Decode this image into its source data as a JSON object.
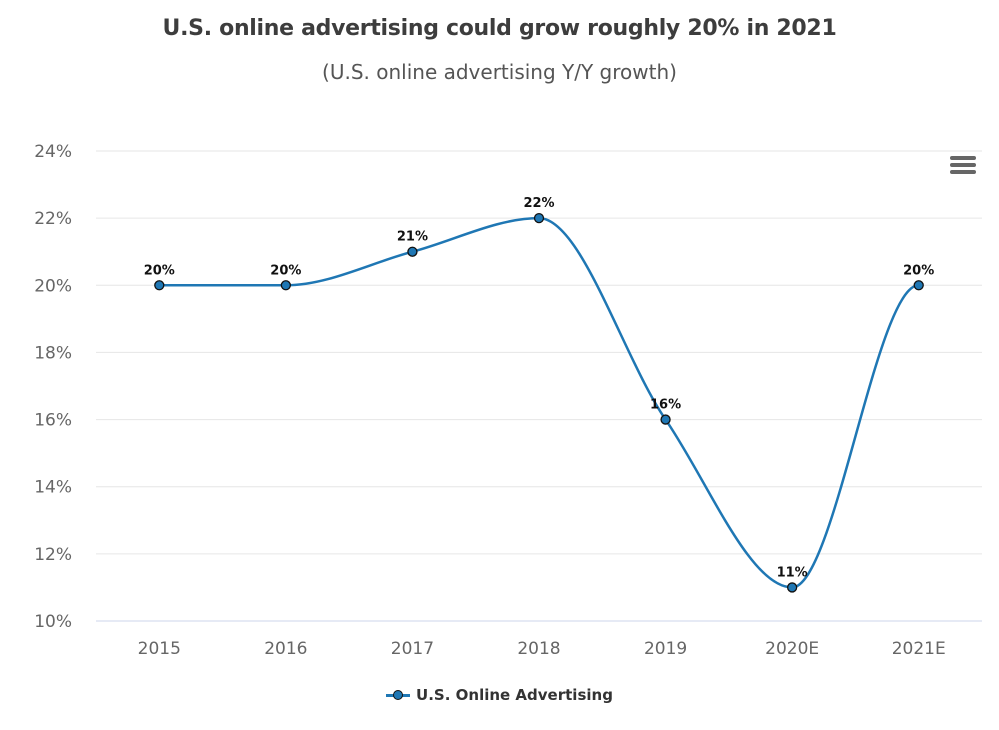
{
  "chart_data": {
    "type": "line",
    "title": "U.S. online advertising could grow roughly 20% in 2021",
    "subtitle": "(U.S. online advertising Y/Y growth)",
    "xlabel": "",
    "ylabel": "",
    "categories": [
      "2015",
      "2016",
      "2017",
      "2018",
      "2019",
      "2020E",
      "2021E"
    ],
    "series": [
      {
        "name": "U.S. Online Advertising",
        "values": [
          20,
          20,
          21,
          22,
          16,
          11,
          20
        ],
        "data_labels": [
          "20%",
          "20%",
          "21%",
          "22%",
          "16%",
          "11%",
          "20%"
        ],
        "color": "#1f77b4",
        "smooth": true
      }
    ],
    "ylim": [
      10,
      24
    ],
    "yticks": [
      10,
      12,
      14,
      16,
      18,
      20,
      22,
      24
    ],
    "ytick_labels": [
      "10%",
      "12%",
      "14%",
      "16%",
      "18%",
      "20%",
      "22%",
      "24%"
    ],
    "grid": true,
    "legend": "bottom-center"
  },
  "ui": {
    "menu_icon": "hamburger-menu-icon",
    "legend_label": "U.S. Online Advertising"
  },
  "colors": {
    "series": "#1f77b4",
    "grid": "#e6e6e6",
    "axis": "#ccd6eb",
    "tick_text": "#666666",
    "title": "#3d3d3d"
  }
}
